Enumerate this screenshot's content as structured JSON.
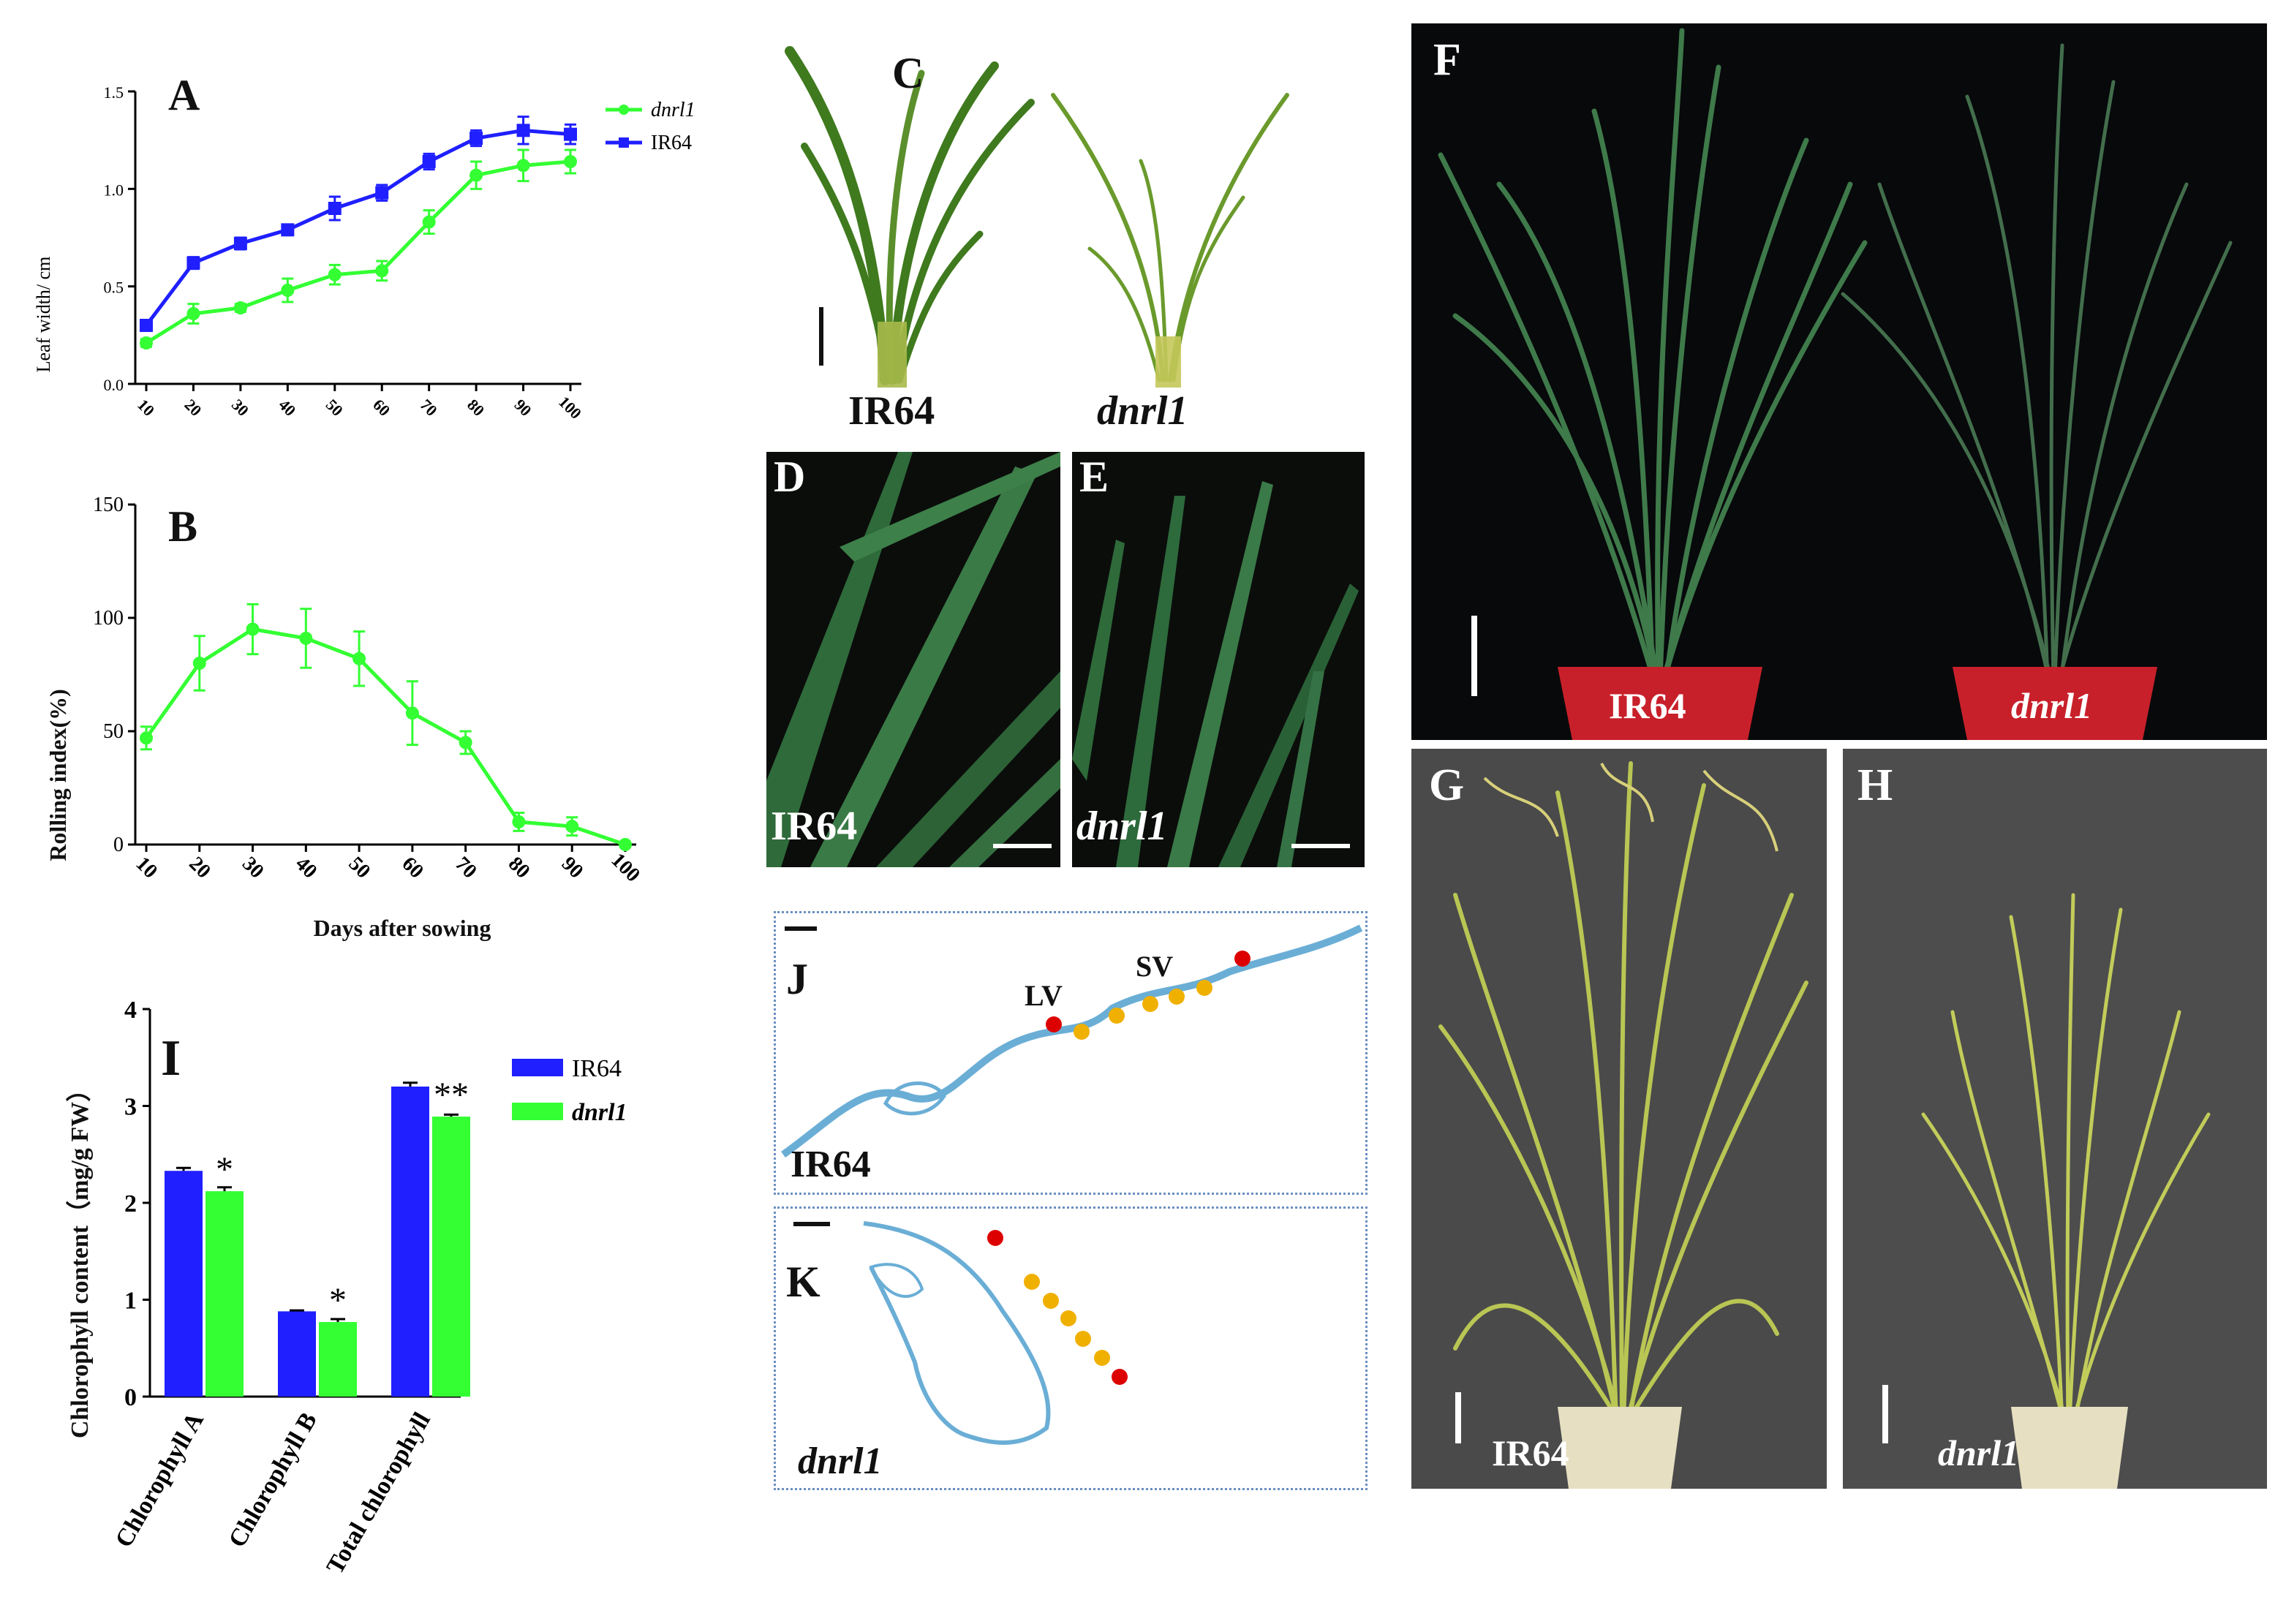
{
  "panels": {
    "A": "A",
    "B": "B",
    "C": "C",
    "D": "D",
    "E": "E",
    "F": "F",
    "G": "G",
    "H": "H",
    "I": "I",
    "J": "J",
    "K": "K"
  },
  "genotypes": {
    "wt": "IR64",
    "mutant": "dnrl1"
  },
  "colors": {
    "ir64": "#1f1fff",
    "dnrl1": "#33ff33",
    "vessel_large": "#dd0000",
    "vessel_small": "#f0b000",
    "section": "#6aaed6"
  },
  "section_labels": {
    "large_vein": "LV",
    "small_vein": "SV"
  },
  "chart_data": [
    {
      "id": "A",
      "type": "line",
      "ylabel": "Leaf width/ cm",
      "xlabel": "",
      "ylim": [
        0,
        1.5
      ],
      "yticks": [
        "0.0",
        "0.5",
        "1.0",
        "1.5"
      ],
      "x": [
        10,
        20,
        30,
        40,
        50,
        60,
        70,
        80,
        90,
        100
      ],
      "legend_position": "top-right",
      "series": [
        {
          "name": "dnrl1",
          "color": "#33ff33",
          "marker": "circle",
          "values": [
            0.21,
            0.36,
            0.39,
            0.48,
            0.56,
            0.58,
            0.83,
            1.07,
            1.12,
            1.14
          ],
          "errors": [
            0.02,
            0.05,
            0.02,
            0.06,
            0.05,
            0.05,
            0.06,
            0.07,
            0.08,
            0.06
          ]
        },
        {
          "name": "IR64",
          "color": "#1f1fff",
          "marker": "square",
          "values": [
            0.3,
            0.62,
            0.72,
            0.79,
            0.9,
            0.98,
            1.14,
            1.26,
            1.3,
            1.28
          ],
          "errors": [
            0.01,
            0.03,
            0.03,
            0.02,
            0.06,
            0.04,
            0.04,
            0.04,
            0.07,
            0.05
          ]
        }
      ]
    },
    {
      "id": "B",
      "type": "line",
      "ylabel": "Rolling index(%)",
      "xlabel": "Days after sowing",
      "ylim": [
        0,
        150
      ],
      "yticks": [
        "0",
        "50",
        "100",
        "150"
      ],
      "x": [
        10,
        20,
        30,
        40,
        50,
        60,
        70,
        80,
        90,
        100
      ],
      "series": [
        {
          "name": "dnrl1",
          "color": "#33ff33",
          "marker": "circle",
          "values": [
            47,
            80,
            95,
            91,
            82,
            58,
            45,
            10,
            8,
            0
          ],
          "errors": [
            5,
            12,
            11,
            13,
            12,
            14,
            5,
            4,
            4,
            1
          ]
        }
      ]
    },
    {
      "id": "I",
      "type": "bar",
      "ylabel": "Chlorophyll content（mg/g FW）",
      "ylim": [
        0,
        4
      ],
      "yticks": [
        "0",
        "1",
        "2",
        "3",
        "4"
      ],
      "categories": [
        "Chlorophyll A",
        "Chlorophyll B",
        "Total chlorophyll"
      ],
      "legend_position": "top-right",
      "series": [
        {
          "name": "IR64",
          "color": "#1f1fff",
          "values": [
            2.33,
            0.88,
            3.2
          ],
          "errors": [
            0.03,
            0.01,
            0.04
          ]
        },
        {
          "name": "dnrl1",
          "color": "#33ff33",
          "values": [
            2.12,
            0.77,
            2.89
          ],
          "errors": [
            0.04,
            0.03,
            0.02
          ]
        }
      ],
      "significance": [
        "*",
        "*",
        "**"
      ]
    }
  ]
}
